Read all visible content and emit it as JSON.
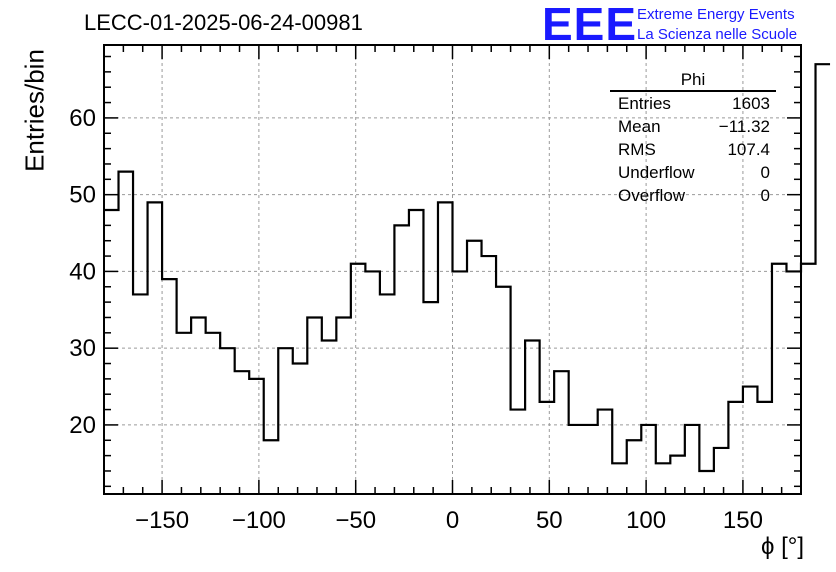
{
  "header": {
    "title": "LECC-01-2025-06-24-00981",
    "logo_text": "EEE",
    "logo_line1": "Extreme Energy Events",
    "logo_line2": "La Scienza nelle Scuole"
  },
  "stats_box": {
    "name": "Phi",
    "rows": [
      {
        "label": "Entries",
        "value": "1603"
      },
      {
        "label": "Mean",
        "value": "−11.32"
      },
      {
        "label": "RMS",
        "value": "107.4"
      },
      {
        "label": "Underflow",
        "value": "0"
      },
      {
        "label": "Overflow",
        "value": "0"
      }
    ]
  },
  "colors": {
    "logo": "#1a1aff",
    "line": "#000000",
    "grid": "#9a9a9a"
  },
  "chart_data": {
    "type": "histogram",
    "xlabel": "ϕ [°]",
    "ylabel": "Entries/bin",
    "xlim": [
      -180,
      180
    ],
    "ylim": [
      11,
      69.5
    ],
    "grid": true,
    "bin_width": 7.5,
    "bin_edges_start": -180,
    "values": [
      48,
      53,
      37,
      49,
      39,
      32,
      34,
      32,
      30,
      27,
      26,
      18,
      30,
      28,
      34,
      31,
      34,
      41,
      40,
      37,
      46,
      48,
      36,
      49,
      40,
      44,
      42,
      38,
      22,
      31,
      23,
      27,
      20,
      20,
      22,
      15,
      18,
      20,
      15,
      16,
      20,
      14,
      17,
      23,
      25,
      23,
      41,
      40,
      41,
      67
    ],
    "x_ticks": [
      -150,
      -100,
      -50,
      0,
      50,
      100,
      150
    ],
    "x_tick_labels": [
      "−150",
      "−100",
      "−50",
      "0",
      "50",
      "100",
      "150"
    ],
    "y_ticks": [
      20,
      30,
      40,
      50,
      60
    ],
    "y_tick_labels": [
      "20",
      "30",
      "40",
      "50",
      "60"
    ]
  }
}
